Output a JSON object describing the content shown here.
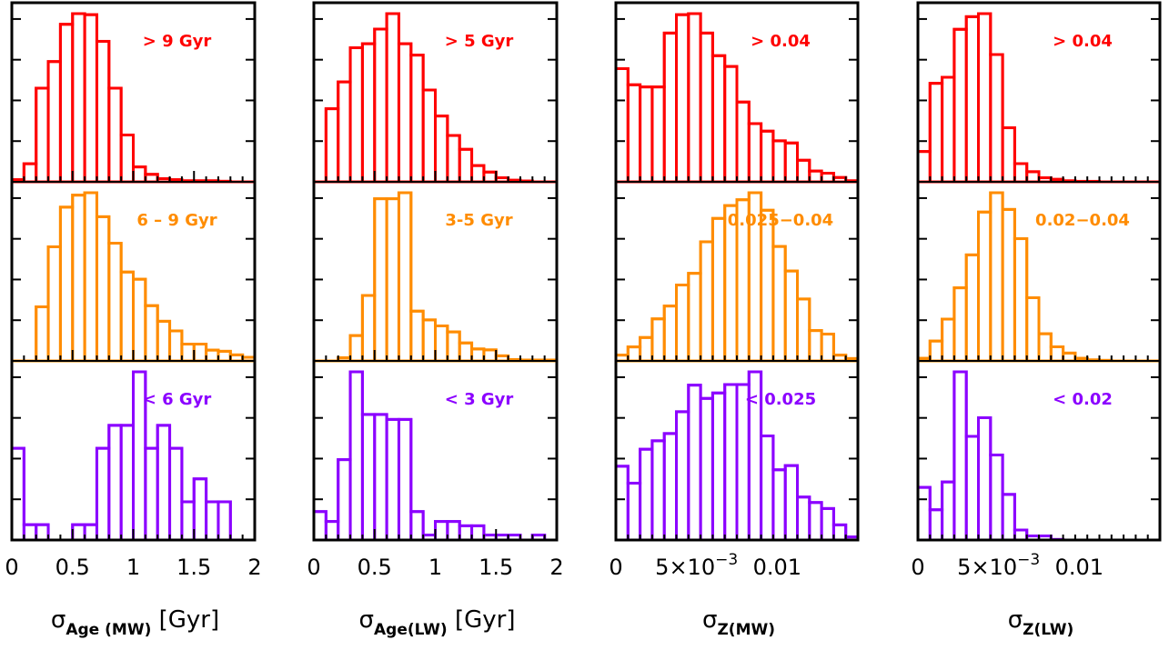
{
  "chart_data": [
    {
      "type": "bar",
      "xlabel": {
        "symbol": "σ",
        "sub": "Age (MW)",
        "unit": "[Gyr]"
      },
      "xlim": [
        0,
        2
      ],
      "bin_width": 0.1,
      "ticks": [
        {
          "v": 0,
          "label": "0"
        },
        {
          "v": 0.5,
          "label": "0.5"
        },
        {
          "v": 1,
          "label": "1"
        },
        {
          "v": 1.5,
          "label": "1.5"
        },
        {
          "v": 2,
          "label": "2"
        }
      ],
      "rows": [
        {
          "label": "> 9 Gyr",
          "color": "#ff0000",
          "values": [
            0.02,
            0.17,
            0.88,
            1.13,
            1.48,
            1.58,
            1.57,
            1.32,
            0.88,
            0.44,
            0.14,
            0.07,
            0.03,
            0.02,
            0.01,
            0.01,
            0.01,
            0.005,
            0.0,
            0.0
          ]
        },
        {
          "label": "6 – 9 Gyr",
          "color": "#ff8c00",
          "values": [
            0.0,
            0.0,
            0.45,
            0.95,
            1.28,
            1.38,
            1.4,
            1.2,
            0.98,
            0.74,
            0.68,
            0.46,
            0.33,
            0.25,
            0.14,
            0.14,
            0.09,
            0.08,
            0.05,
            0.03
          ]
        },
        {
          "label": "< 6 Gyr",
          "color": "#8b00ff",
          "values": [
            0.72,
            0.12,
            0.12,
            0.0,
            0.0,
            0.12,
            0.12,
            0.72,
            0.9,
            0.9,
            1.32,
            0.72,
            0.9,
            0.72,
            0.3,
            0.48,
            0.3,
            0.3,
            0.0,
            0.0
          ]
        }
      ]
    },
    {
      "type": "bar",
      "xlabel": {
        "symbol": "σ",
        "sub": "Age(LW)",
        "unit": "[Gyr]"
      },
      "xlim": [
        0,
        2
      ],
      "bin_width": 0.1,
      "ticks": [
        {
          "v": 0,
          "label": "0"
        },
        {
          "v": 0.5,
          "label": "0.5"
        },
        {
          "v": 1,
          "label": "1"
        },
        {
          "v": 1.5,
          "label": "1.5"
        },
        {
          "v": 2,
          "label": "2"
        }
      ],
      "rows": [
        {
          "label": "> 5 Gyr",
          "color": "#ff0000",
          "values": [
            0.0,
            0.9,
            1.23,
            1.65,
            1.7,
            1.88,
            2.07,
            1.7,
            1.56,
            1.13,
            0.81,
            0.57,
            0.4,
            0.2,
            0.12,
            0.05,
            0.02,
            0.01,
            0.0,
            0.0
          ]
        },
        {
          "label": "3-5 Gyr",
          "color": "#ff8c00",
          "values": [
            0.0,
            0.0,
            0.07,
            0.55,
            1.42,
            3.52,
            3.52,
            3.65,
            1.08,
            0.89,
            0.76,
            0.63,
            0.39,
            0.26,
            0.24,
            0.11,
            0.03,
            0.02,
            0.02,
            0.02
          ]
        },
        {
          "label": "< 3 Gyr",
          "color": "#8b00ff",
          "values": [
            0.46,
            0.3,
            1.3,
            2.72,
            2.03,
            2.03,
            1.95,
            1.95,
            0.46,
            0.08,
            0.3,
            0.3,
            0.23,
            0.23,
            0.08,
            0.08,
            0.08,
            0.0,
            0.08,
            0.0
          ]
        }
      ]
    },
    {
      "type": "bar",
      "xlabel": {
        "symbol": "σ",
        "sub": "Z(MW)",
        "unit": ""
      },
      "xlim": [
        0,
        0.015
      ],
      "bin_width": 0.00075,
      "ticks": [
        {
          "v": 0,
          "label": "0"
        },
        {
          "v": 0.005,
          "label": "5×10",
          "sup": "−3"
        },
        {
          "v": 0.01,
          "label": "0.01"
        }
      ],
      "rows": [
        {
          "label": "> 0.04",
          "color": "#ff0000",
          "values": [
            1.05,
            0.9,
            0.88,
            0.88,
            1.38,
            1.55,
            1.56,
            1.38,
            1.17,
            1.07,
            0.74,
            0.54,
            0.47,
            0.38,
            0.36,
            0.2,
            0.1,
            0.08,
            0.04,
            0.01
          ]
        },
        {
          "label": "0.025−0.04",
          "color": "#ff8c00",
          "values": [
            0.05,
            0.12,
            0.2,
            0.36,
            0.47,
            0.65,
            0.75,
            1.02,
            1.22,
            1.33,
            1.38,
            1.44,
            1.29,
            0.98,
            0.77,
            0.53,
            0.26,
            0.23,
            0.05,
            0.02
          ]
        },
        {
          "label": "< 0.025",
          "color": "#8b00ff",
          "values": [
            1.22,
            0.94,
            1.5,
            1.64,
            1.76,
            2.12,
            2.56,
            2.34,
            2.43,
            2.57,
            2.57,
            2.78,
            1.72,
            1.16,
            1.23,
            0.71,
            0.62,
            0.52,
            0.25,
            0.05
          ]
        }
      ]
    },
    {
      "type": "bar",
      "xlabel": {
        "symbol": "σ",
        "sub": "Z(LW)",
        "unit": ""
      },
      "xlim": [
        0,
        0.015
      ],
      "bin_width": 0.00075,
      "ticks": [
        {
          "v": 0,
          "label": "0"
        },
        {
          "v": 0.005,
          "label": "5×10",
          "sup": "−3"
        },
        {
          "v": 0.01,
          "label": "0.01"
        }
      ],
      "rows": [
        {
          "label": "> 0.04",
          "color": "#ff0000",
          "values": [
            0.6,
            1.95,
            2.07,
            3.02,
            3.27,
            3.33,
            2.52,
            1.07,
            0.36,
            0.2,
            0.08,
            0.05,
            0.02,
            0.01,
            0.01,
            0.0,
            0.0,
            0.0,
            0.0,
            0.0
          ]
        },
        {
          "label": "0.02−0.04",
          "color": "#ff8c00",
          "values": [
            0.05,
            0.38,
            0.8,
            1.4,
            2.03,
            2.85,
            3.22,
            2.9,
            2.34,
            1.21,
            0.52,
            0.27,
            0.15,
            0.05,
            0.02,
            0.01,
            0.0,
            0.0,
            0.0,
            0.0
          ]
        },
        {
          "label": "< 0.02",
          "color": "#8b00ff",
          "values": [
            1.95,
            1.12,
            2.15,
            6.23,
            3.84,
            4.53,
            3.15,
            1.69,
            0.37,
            0.15,
            0.15,
            0.02,
            0.0,
            0.0,
            0.0,
            0.0,
            0.0,
            0.0,
            0.0,
            0.0
          ]
        }
      ]
    }
  ]
}
